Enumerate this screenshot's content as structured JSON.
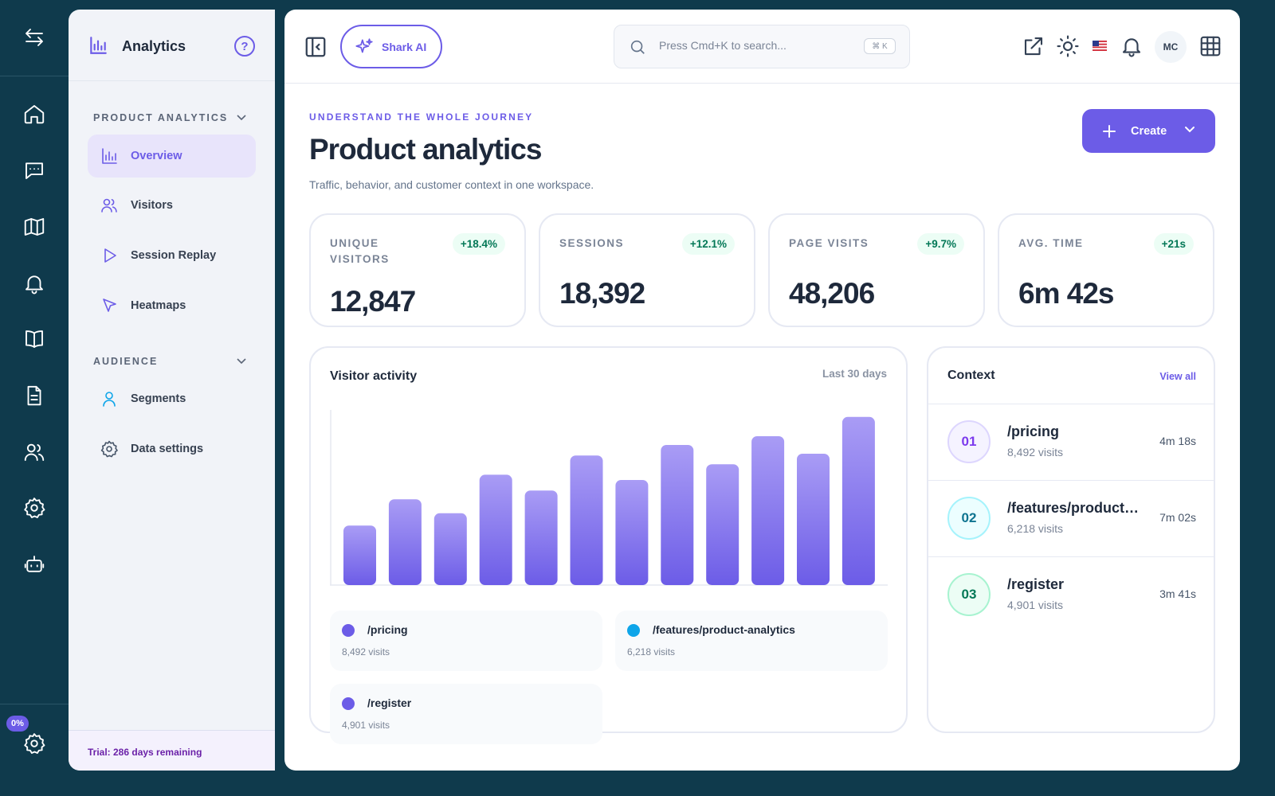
{
  "rail": {
    "icons": [
      "swap-arrows-icon",
      "home-icon",
      "chat-icon",
      "map-icon",
      "bell-icon",
      "book-icon",
      "document-icon",
      "users-icon",
      "settings-icon",
      "robot-icon"
    ],
    "bottom_badge": "0%"
  },
  "sidebar": {
    "title": "Analytics",
    "help": "?",
    "sections": [
      {
        "label": "PRODUCT ANALYTICS",
        "items": [
          {
            "label": "Overview",
            "icon": "bar-chart-icon",
            "active": true
          },
          {
            "label": "Visitors",
            "icon": "users-icon"
          },
          {
            "label": "Session Replay",
            "icon": "play-icon"
          },
          {
            "label": "Heatmaps",
            "icon": "cursor-icon"
          }
        ]
      },
      {
        "label": "AUDIENCE",
        "items": [
          {
            "label": "Segments",
            "icon": "user-icon"
          },
          {
            "label": "Data settings",
            "icon": "gear-icon"
          }
        ]
      }
    ],
    "trial": "Trial: 286 days remaining"
  },
  "topbar": {
    "ai_button": "Shark AI",
    "search_placeholder": "Press Cmd+K to search...",
    "search_shortcut": "⌘ K",
    "avatar_initials": "MC"
  },
  "header": {
    "eyebrow": "UNDERSTAND THE WHOLE JOURNEY",
    "title": "Product analytics",
    "subtitle": "Traffic, behavior, and customer context in one workspace.",
    "create_label": "Create"
  },
  "stats": [
    {
      "label": "UNIQUE VISITORS",
      "delta": "+18.4%",
      "value": "12,847"
    },
    {
      "label": "SESSIONS",
      "delta": "+12.1%",
      "value": "18,392"
    },
    {
      "label": "PAGE VISITS",
      "delta": "+9.7%",
      "value": "48,206"
    },
    {
      "label": "AVG. TIME",
      "delta": "+21s",
      "value": "6m 42s"
    }
  ],
  "activity": {
    "title": "Visitor activity",
    "range": "Last 30 days",
    "legend": [
      {
        "name": "/pricing",
        "visits": "8,492 visits",
        "color": "#6c5ce7"
      },
      {
        "name": "/features/product-analytics",
        "visits": "6,218 visits",
        "color": "#0ea5e9"
      },
      {
        "name": "/register",
        "visits": "4,901 visits",
        "color": "#6c5ce7"
      }
    ]
  },
  "chart_data": {
    "type": "bar",
    "title": "Visitor activity",
    "values": [
      34,
      49,
      41,
      63,
      54,
      74,
      60,
      80,
      69,
      85,
      75,
      96
    ],
    "ylim": [
      0,
      100
    ],
    "grid": false,
    "bar_color_top": "#a99cf5",
    "bar_color_bottom": "#6c5ce7"
  },
  "context": {
    "title": "Context",
    "view_all": "View all",
    "rows": [
      {
        "rank": "01",
        "path": "/pricing",
        "visits": "8,492 visits",
        "time": "4m 18s",
        "color": "#7c3aed",
        "bg": "#f5f3ff",
        "border": "#ddd6fe"
      },
      {
        "rank": "02",
        "path": "/features/product-analytics",
        "visits": "6,218 visits",
        "time": "7m 02s",
        "color": "#0e7490",
        "bg": "#ecfeff",
        "border": "#a5f3fc"
      },
      {
        "rank": "03",
        "path": "/register",
        "visits": "4,901 visits",
        "time": "3m 41s",
        "color": "#047857",
        "bg": "#ecfdf5",
        "border": "#a7f3d0"
      }
    ]
  }
}
